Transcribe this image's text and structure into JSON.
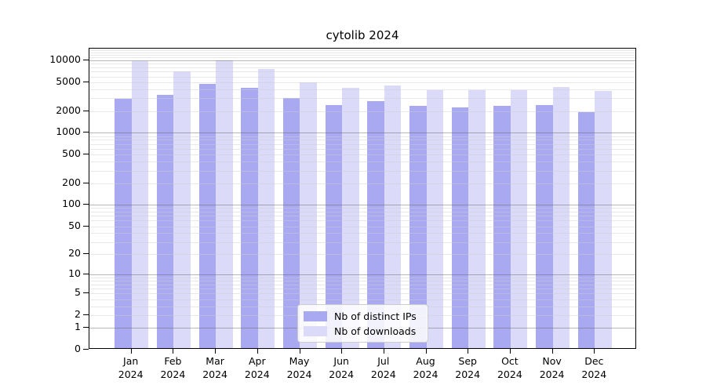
{
  "chart_data": {
    "type": "bar",
    "title": "cytolib 2024",
    "categories": [
      "Jan",
      "Feb",
      "Mar",
      "Apr",
      "May",
      "Jun",
      "Jul",
      "Aug",
      "Sep",
      "Oct",
      "Nov",
      "Dec"
    ],
    "x_tick_second_line": "2024",
    "series": [
      {
        "name": "Nb of distinct IPs",
        "color": "#a9a9f2",
        "values": [
          2780,
          3180,
          4540,
          4010,
          2890,
          2330,
          2580,
          2220,
          2160,
          2250,
          2310,
          1860
        ]
      },
      {
        "name": "Nb of downloads",
        "color": "#dbdbf9",
        "values": [
          9230,
          6780,
          9620,
          7190,
          4730,
          3970,
          4250,
          3720,
          3690,
          3660,
          4050,
          3630
        ]
      }
    ],
    "yscale": "log1p",
    "ylim": [
      0,
      14600
    ],
    "yticks": [
      0,
      1,
      2,
      5,
      10,
      20,
      50,
      100,
      200,
      500,
      1000,
      2000,
      5000,
      10000
    ],
    "grid": "major and minor horizontal gridlines, drawn over bars",
    "legend_position": "bottom-center inside plot"
  }
}
